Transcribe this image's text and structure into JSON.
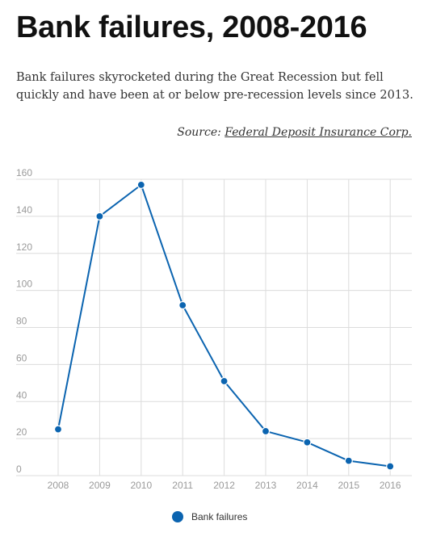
{
  "header": {
    "title": "Bank failures, 2008-2016",
    "subtitle": "Bank failures skyrocketed during the Great Recession but fell quickly and have been at or below pre-recession levels since 2013.",
    "source_prefix": "Source: ",
    "source_link": "Federal Deposit Insurance Corp."
  },
  "chart_data": {
    "type": "line",
    "categories": [
      "2008",
      "2009",
      "2010",
      "2011",
      "2012",
      "2013",
      "2014",
      "2015",
      "2016"
    ],
    "series": [
      {
        "name": "Bank failures",
        "values": [
          25,
          140,
          157,
          92,
          51,
          24,
          18,
          8,
          5
        ],
        "color": "#0b64b0"
      }
    ],
    "ylim": [
      0,
      160
    ],
    "yticks": [
      0,
      20,
      40,
      60,
      80,
      100,
      120,
      140,
      160
    ],
    "grid": true,
    "legend": "bottom-center"
  }
}
